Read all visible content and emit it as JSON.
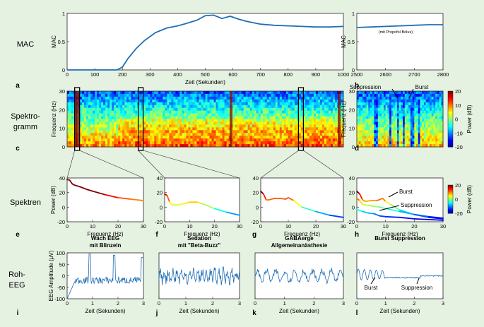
{
  "row_labels": {
    "mac": "MAC",
    "spec_line1": "Spektro-",
    "spec_line2": "gramm",
    "spectra": "Spektren",
    "raw_line1": "Roh-",
    "raw_line2": "EEG"
  },
  "panel_letters": [
    "a",
    "b",
    "c",
    "d",
    "e",
    "f",
    "g",
    "h",
    "i",
    "j",
    "k",
    "l"
  ],
  "colors": {
    "background": "#e5f1e1",
    "line": "#1f6eb5"
  },
  "chart_data": [
    {
      "id": "a",
      "type": "line",
      "xlabel": "Zeit (Sekunden)",
      "ylabel": "MAC",
      "xlim": [
        0,
        1000
      ],
      "ylim": [
        0,
        1
      ],
      "xticks": [
        0,
        100,
        200,
        300,
        400,
        500,
        600,
        700,
        800,
        900,
        1000
      ],
      "yticks": [
        0,
        0.5,
        1
      ],
      "x": [
        0,
        180,
        200,
        220,
        250,
        280,
        320,
        360,
        400,
        430,
        470,
        500,
        530,
        560,
        590,
        620,
        650,
        700,
        750,
        800,
        850,
        900,
        950,
        1000
      ],
      "y": [
        0,
        0,
        0.05,
        0.2,
        0.38,
        0.52,
        0.66,
        0.74,
        0.78,
        0.82,
        0.88,
        0.96,
        0.97,
        0.91,
        0.95,
        0.9,
        0.86,
        0.81,
        0.79,
        0.78,
        0.77,
        0.76,
        0.76,
        0.77
      ]
    },
    {
      "id": "b",
      "type": "line",
      "xlim": [
        2500,
        2800
      ],
      "ylim": [
        0,
        1
      ],
      "xticks": [
        2500,
        2600,
        2700,
        2800
      ],
      "yticks": [
        0,
        0.5,
        1
      ],
      "ylabel": "MAC",
      "annotation": "(mit Propofol Bolus)",
      "x": [
        2500,
        2550,
        2600,
        2650,
        2700,
        2750,
        2800
      ],
      "y": [
        0.75,
        0.76,
        0.77,
        0.78,
        0.79,
        0.8,
        0.8
      ]
    },
    {
      "id": "c",
      "type": "heatmap",
      "ylabel": "Frequenz (Hz)",
      "ylim": [
        0,
        30
      ],
      "yticks": [
        0,
        10,
        20,
        30
      ],
      "x_range": [
        0,
        1000
      ],
      "frequency_range": [
        0,
        30
      ],
      "power_range_db": [
        -20,
        20
      ],
      "selection_windows_sec": [
        60,
        300,
        860
      ]
    },
    {
      "id": "d",
      "type": "heatmap",
      "ylabel": "Frequenz (Hz)",
      "ylim": [
        0,
        30
      ],
      "yticks": [
        0,
        10,
        20,
        30
      ],
      "x_range": [
        2500,
        2800
      ],
      "annotations": [
        "Suppression",
        "Burst"
      ],
      "colorbar": {
        "label": "Power (dB)",
        "ticks": [
          20,
          10,
          0,
          -10,
          -20
        ]
      }
    },
    {
      "id": "e",
      "type": "line",
      "ylabel": "Power (dB)",
      "xlabel": "Frequenz (Hz)",
      "xlim": [
        0,
        30
      ],
      "ylim": [
        -20,
        40
      ],
      "xticks": [
        0,
        10,
        20,
        30
      ],
      "yticks": [
        -20,
        0,
        20,
        40
      ],
      "x": [
        0,
        1,
        2,
        3,
        5,
        8,
        10,
        15,
        20,
        25,
        30
      ],
      "y": [
        38,
        37,
        32,
        30,
        28,
        24,
        22,
        17,
        13,
        11,
        9
      ]
    },
    {
      "id": "f",
      "type": "line",
      "xlabel": "Frequenz (Hz)",
      "xlim": [
        0,
        30
      ],
      "ylim": [
        -20,
        40
      ],
      "xticks": [
        0,
        10,
        20,
        30
      ],
      "yticks": [
        -20,
        0,
        20,
        40
      ],
      "x": [
        0,
        1,
        2,
        3,
        5,
        8,
        10,
        13,
        15,
        20,
        25,
        30
      ],
      "y": [
        18,
        16,
        7,
        3,
        3,
        5,
        7,
        7,
        5,
        -2,
        -7,
        -11
      ]
    },
    {
      "id": "g",
      "type": "line",
      "xlabel": "Frequenz (Hz)",
      "xlim": [
        0,
        30
      ],
      "ylim": [
        -20,
        40
      ],
      "xticks": [
        0,
        10,
        20,
        30
      ],
      "yticks": [
        -20,
        0,
        20,
        40
      ],
      "x": [
        0,
        1,
        2,
        3,
        5,
        7,
        9,
        10,
        12,
        15,
        20,
        25,
        30
      ],
      "y": [
        22,
        18,
        10,
        10,
        12,
        12,
        11,
        13,
        9,
        0,
        -6,
        -11,
        -14
      ]
    },
    {
      "id": "h",
      "type": "line",
      "xlabel": "Frequenz (Hz)",
      "xlim": [
        0,
        30
      ],
      "ylim": [
        -20,
        40
      ],
      "xticks": [
        0,
        10,
        20,
        30
      ],
      "yticks": [
        -20,
        0,
        20,
        40
      ],
      "annotations": [
        "Burst",
        "Suppression"
      ],
      "colorbar": {
        "label": "Power (dB)",
        "ticks": [
          20,
          0,
          -20
        ]
      },
      "series": [
        {
          "x": [
            0,
            1,
            2,
            3,
            5,
            7,
            9,
            10,
            12,
            15,
            20,
            25,
            30
          ],
          "y": [
            22,
            18,
            10,
            8,
            9,
            9,
            12,
            8,
            3,
            -4,
            -10,
            -14,
            -16
          ]
        },
        {
          "x": [
            0,
            1,
            2,
            3,
            5,
            8,
            10,
            15,
            20,
            25,
            30
          ],
          "y": [
            12,
            9,
            4,
            3,
            2,
            0,
            -2,
            -6,
            -10,
            -13,
            -15
          ]
        },
        {
          "x": [
            0,
            2,
            4,
            6,
            8,
            10,
            15,
            20,
            25,
            30
          ],
          "y": [
            -3,
            -6,
            -8,
            -9,
            -12,
            -13,
            -14,
            -16,
            -17,
            -18
          ]
        }
      ]
    },
    {
      "id": "i",
      "type": "line",
      "title": "Wach EEG\nmit Blinzeln",
      "ylabel": "EEG Amplitude (µV)",
      "xlabel": "Zeit (Sekunden)",
      "xlim": [
        0,
        3
      ],
      "ylim": [
        -100,
        100
      ],
      "xticks": [
        0,
        1,
        2,
        3
      ],
      "yticks": [
        -100,
        -50,
        0,
        50,
        100
      ]
    },
    {
      "id": "j",
      "type": "line",
      "title": "Sedation\nmit \"Beta-Buzz\"",
      "xlabel": "Zeit (Sekunden)",
      "xlim": [
        0,
        3
      ],
      "ylim": [
        -100,
        100
      ],
      "xticks": [
        0,
        1,
        2,
        3
      ]
    },
    {
      "id": "k",
      "type": "line",
      "title": "GABAerge\nAllgemeinanästhesie",
      "xlabel": "Zeit (Sekunden)",
      "xlim": [
        0,
        3
      ],
      "ylim": [
        -100,
        100
      ],
      "xticks": [
        0,
        1,
        2,
        3
      ]
    },
    {
      "id": "l",
      "type": "line",
      "title": "Burst Suppression",
      "xlabel": "Zeit (Sekunden)",
      "xlim": [
        0,
        3
      ],
      "ylim": [
        -100,
        100
      ],
      "xticks": [
        0,
        1,
        2,
        3
      ],
      "annotations": [
        "Burst",
        "Suppression"
      ]
    }
  ]
}
